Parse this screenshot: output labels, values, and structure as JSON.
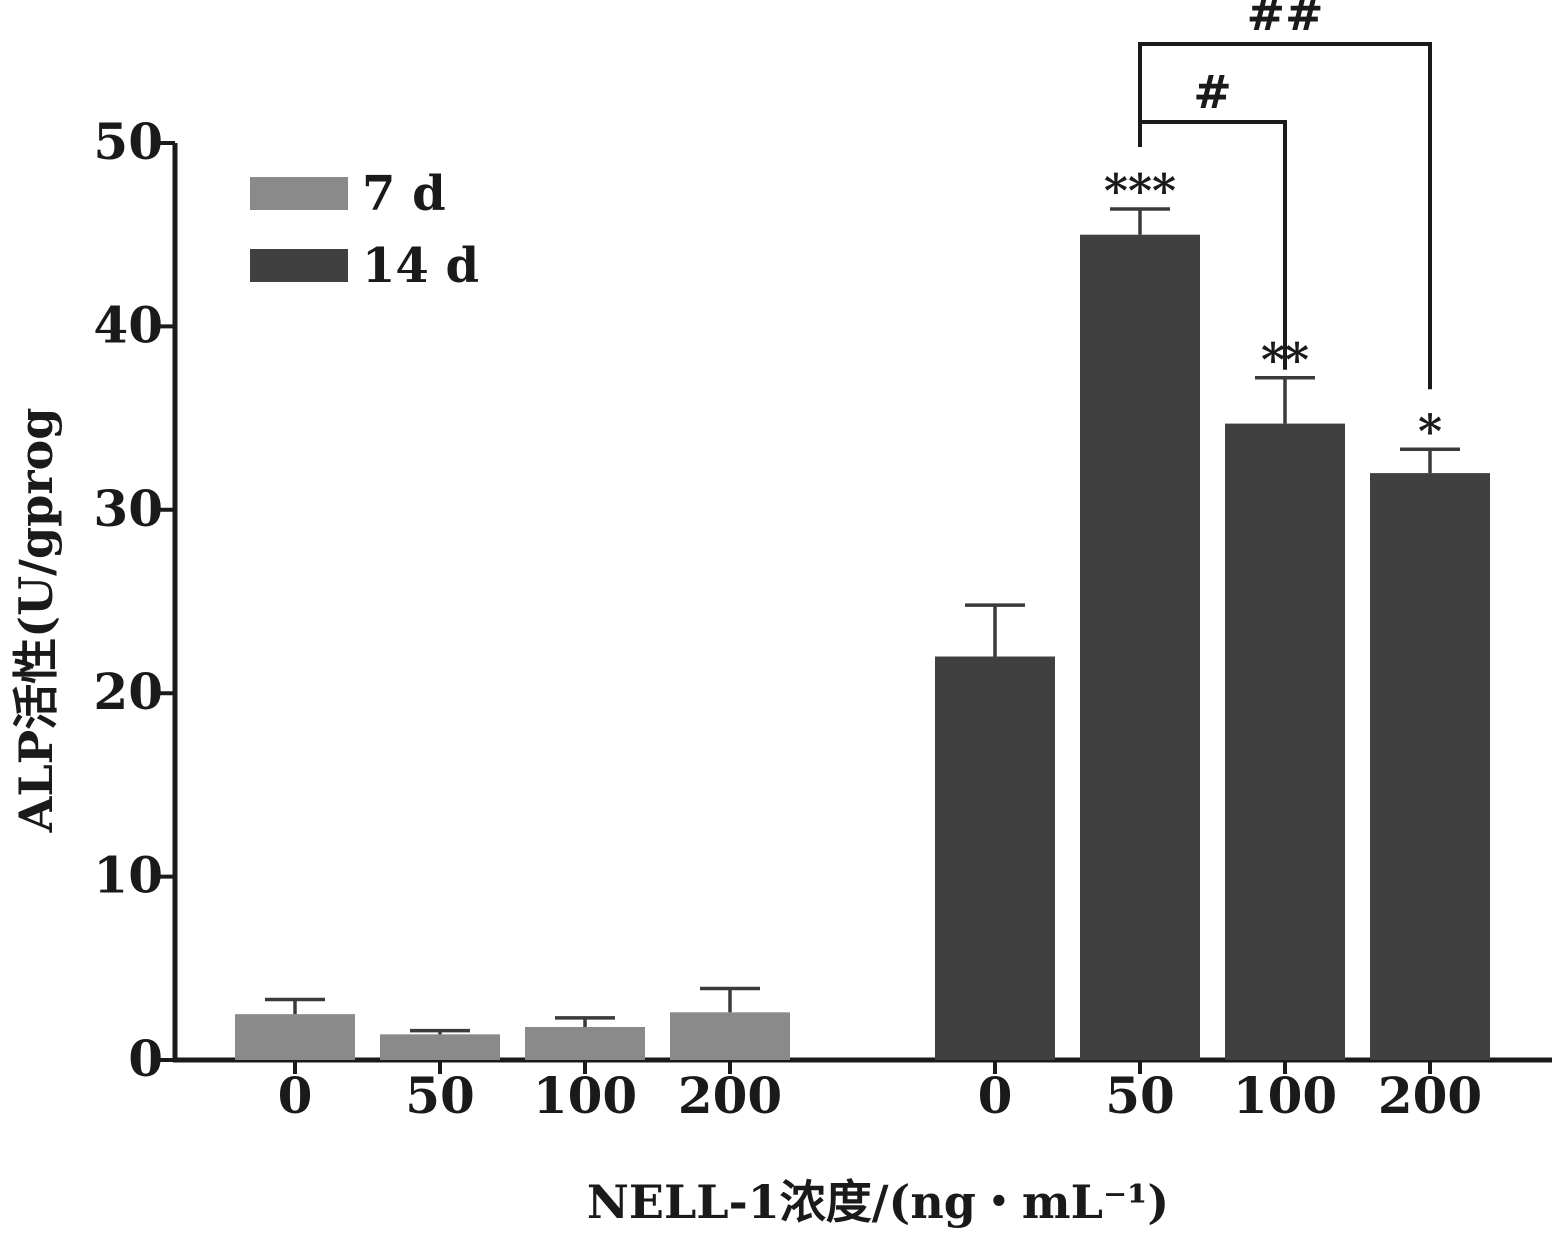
{
  "chart_data": {
    "type": "bar",
    "title": "",
    "ylabel": "ALP活性(U/gprog",
    "xlabel": "NELL-1浓度/(ng・mL⁻¹)",
    "ylim": [
      0,
      50
    ],
    "yticks": [
      0,
      10,
      20,
      30,
      40,
      50
    ],
    "legend_position": "top-left",
    "groups": [
      {
        "name": "7 d",
        "color": "#8a8a8a",
        "categories": [
          "0",
          "50",
          "100",
          "200"
        ],
        "values": [
          2.5,
          1.4,
          1.8,
          2.6
        ],
        "errors": [
          0.8,
          0.2,
          0.5,
          1.3
        ],
        "significance": [
          "",
          "",
          "",
          ""
        ]
      },
      {
        "name": "14 d",
        "color": "#404040",
        "categories": [
          "0",
          "50",
          "100",
          "200"
        ],
        "values": [
          22.0,
          45.0,
          34.7,
          32.0
        ],
        "errors": [
          2.8,
          1.4,
          2.5,
          1.3
        ],
        "significance": [
          "",
          "***",
          "**",
          "*"
        ]
      }
    ],
    "comparisons": [
      {
        "group": 1,
        "from": 1,
        "to": 2,
        "label": "#"
      },
      {
        "group": 1,
        "from": 1,
        "to": 3,
        "label": "##"
      }
    ]
  }
}
